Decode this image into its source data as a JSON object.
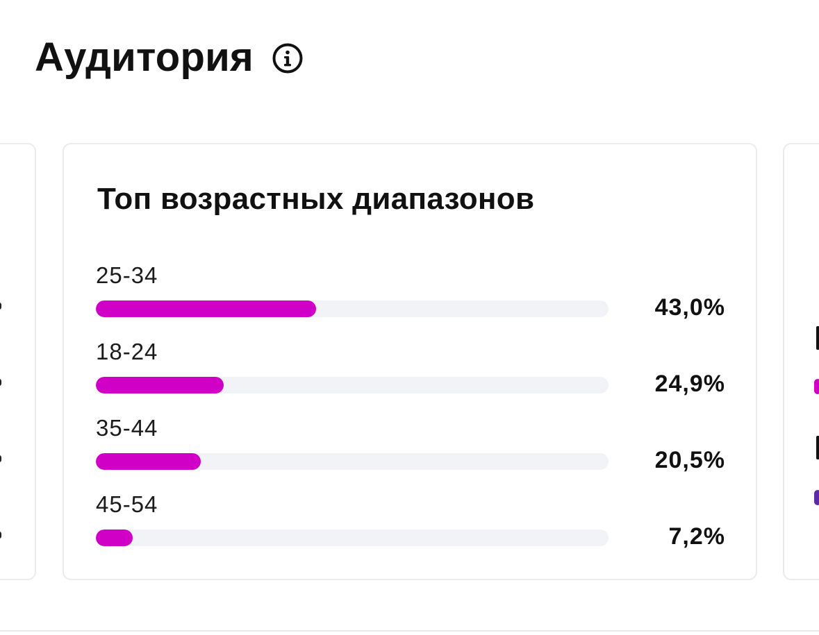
{
  "header": {
    "title": "Аудитория",
    "info_icon": "info-circle-icon"
  },
  "age_card": {
    "title": "Топ возрастных диапазонов",
    "accent_color": "#d100c6",
    "track_color": "#f1f3f7",
    "rows": [
      {
        "label": "25-34",
        "value": "43,0%",
        "percent": 43.0
      },
      {
        "label": "18-24",
        "value": "24,9%",
        "percent": 24.9
      },
      {
        "label": "35-44",
        "value": "20,5%",
        "percent": 20.5
      },
      {
        "label": "45-54",
        "value": "7,2%",
        "percent": 7.2
      }
    ]
  },
  "colors": {
    "card_border": "#e9ebef",
    "text": "#111111",
    "purple_accent": "#5b2aa6"
  }
}
